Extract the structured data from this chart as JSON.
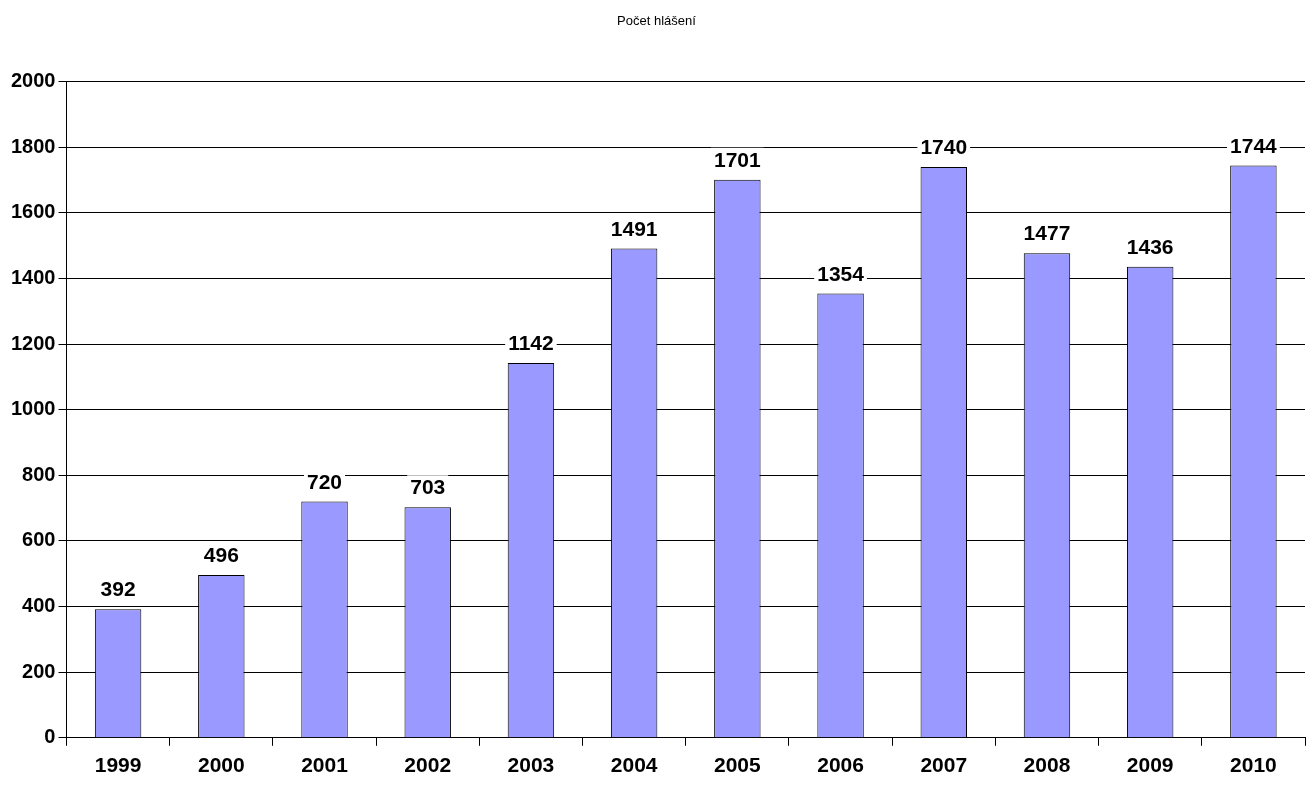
{
  "chart_data": {
    "type": "bar",
    "title": "Počet hlášení",
    "categories": [
      "1999",
      "2000",
      "2001",
      "2002",
      "2003",
      "2004",
      "2005",
      "2006",
      "2007",
      "2008",
      "2009",
      "2010"
    ],
    "values": [
      392,
      496,
      720,
      703,
      1142,
      1491,
      1701,
      1354,
      1740,
      1477,
      1436,
      1744
    ],
    "color": "#9999ff",
    "ylim": [
      0,
      2000
    ],
    "yticks": [
      0,
      200,
      400,
      600,
      800,
      1000,
      1200,
      1400,
      1600,
      1800,
      2000
    ],
    "grid": "y",
    "data_labels": true
  }
}
